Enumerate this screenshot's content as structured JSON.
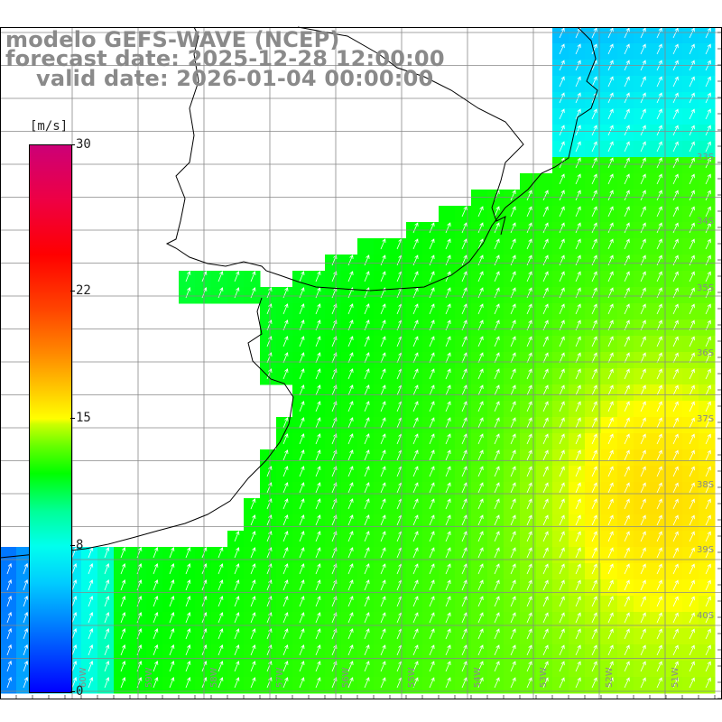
{
  "title": {
    "line1": "modelo GEFS-WAVE (NCEP)",
    "line2": "forecast date: 2025-12-28 12:00:00",
    "line3": "valid date: 2026-01-04 00:00:00"
  },
  "colorbar": {
    "units": "[m/s]",
    "ticks": [
      {
        "value": 30,
        "label": "30"
      },
      {
        "value": 22,
        "label": "22"
      },
      {
        "value": 15,
        "label": "15"
      },
      {
        "value": 8,
        "label": "8"
      },
      {
        "value": 0,
        "label": "0"
      }
    ],
    "range": [
      0,
      30
    ]
  },
  "map": {
    "lat_labels": [
      "33S",
      "34S",
      "35S",
      "36S",
      "37S",
      "38S",
      "39S",
      "40S"
    ],
    "lon_labels": [
      "60W",
      "59W",
      "58W",
      "57W",
      "56W",
      "55W",
      "54W",
      "53W",
      "52W",
      "51W"
    ],
    "wind_field": "northward winds, approx. 9-12 m/s over ocean, 13-15 m/s south-east",
    "colors": {
      "land": "#ffffff",
      "grid": "#888888",
      "coast": "#000000",
      "arrow": "#ffffff"
    }
  }
}
